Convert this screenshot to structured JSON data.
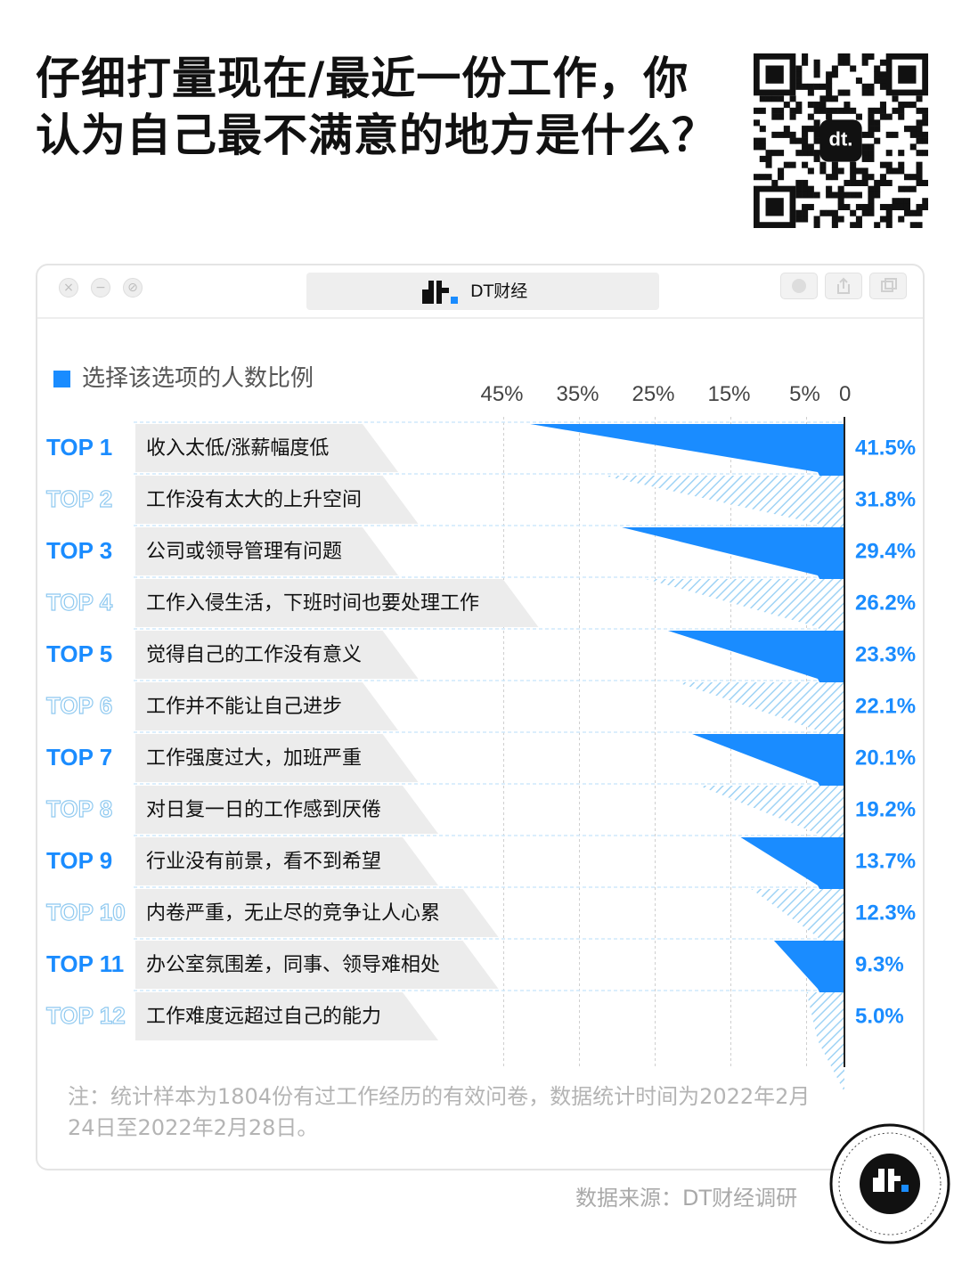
{
  "title_lines": [
    "仔细打量现在/最近一份工作，你",
    "认为自己最不满意的地方是什么？"
  ],
  "window": {
    "tab_label": "DT财经",
    "controls": [
      "×",
      "−",
      "⊘"
    ]
  },
  "legend_label": "选择该选项的人数比例",
  "note": "注：统计样本为1804份有过工作经历的有效问卷，数据统计时间为2022年2月24日至2022年2月28日。",
  "source": "数据来源：DT财经调研",
  "colors": {
    "accent": "#1a8cff",
    "hatch": "#9fd3f5",
    "dark_text": "#111111",
    "muted_text": "#b4b4b4"
  },
  "icons": {
    "qr": "qr-code-icon",
    "logo": "dt-logo-icon",
    "badge": "dt-badge-icon"
  },
  "chart_data": {
    "type": "bar",
    "orientation": "horizontal",
    "direction": "right-to-left",
    "xlim": [
      0,
      45
    ],
    "x_ticks": [
      "45%",
      "35%",
      "25%",
      "15%",
      "5%",
      "0"
    ],
    "x_tick_values": [
      45,
      35,
      25,
      15,
      5,
      0
    ],
    "value_suffix": "%",
    "grid": true,
    "ranks": [
      "TOP 1",
      "TOP 2",
      "TOP 3",
      "TOP 4",
      "TOP 5",
      "TOP 6",
      "TOP 7",
      "TOP 8",
      "TOP 9",
      "TOP 10",
      "TOP 11",
      "TOP 12"
    ],
    "categories": [
      "收入太低/涨薪幅度低",
      "工作没有太大的上升空间",
      "公司或领导管理有问题",
      "工作入侵生活，下班时间也要处理工作",
      "觉得自己的工作没有意义",
      "工作并不能让自己进步",
      "工作强度过大，加班严重",
      "对日复一日的工作感到厌倦",
      "行业没有前景，看不到希望",
      "内卷严重，无止尽的竞争让人心累",
      "办公室氛围差，同事、领导难相处",
      "工作难度远超过自己的能力"
    ],
    "values": [
      41.5,
      31.8,
      29.4,
      26.2,
      23.3,
      22.1,
      20.1,
      19.2,
      13.7,
      12.3,
      9.3,
      5.0
    ],
    "value_labels": [
      "41.5%",
      "31.8%",
      "29.4%",
      "26.2%",
      "23.3%",
      "22.1%",
      "20.1%",
      "19.2%",
      "13.7%",
      "12.3%",
      "9.3%",
      "5.0%"
    ],
    "styles": [
      "solid",
      "hatched",
      "solid",
      "hatched",
      "solid",
      "hatched",
      "solid",
      "hatched",
      "solid",
      "hatched",
      "solid",
      "hatched"
    ]
  }
}
